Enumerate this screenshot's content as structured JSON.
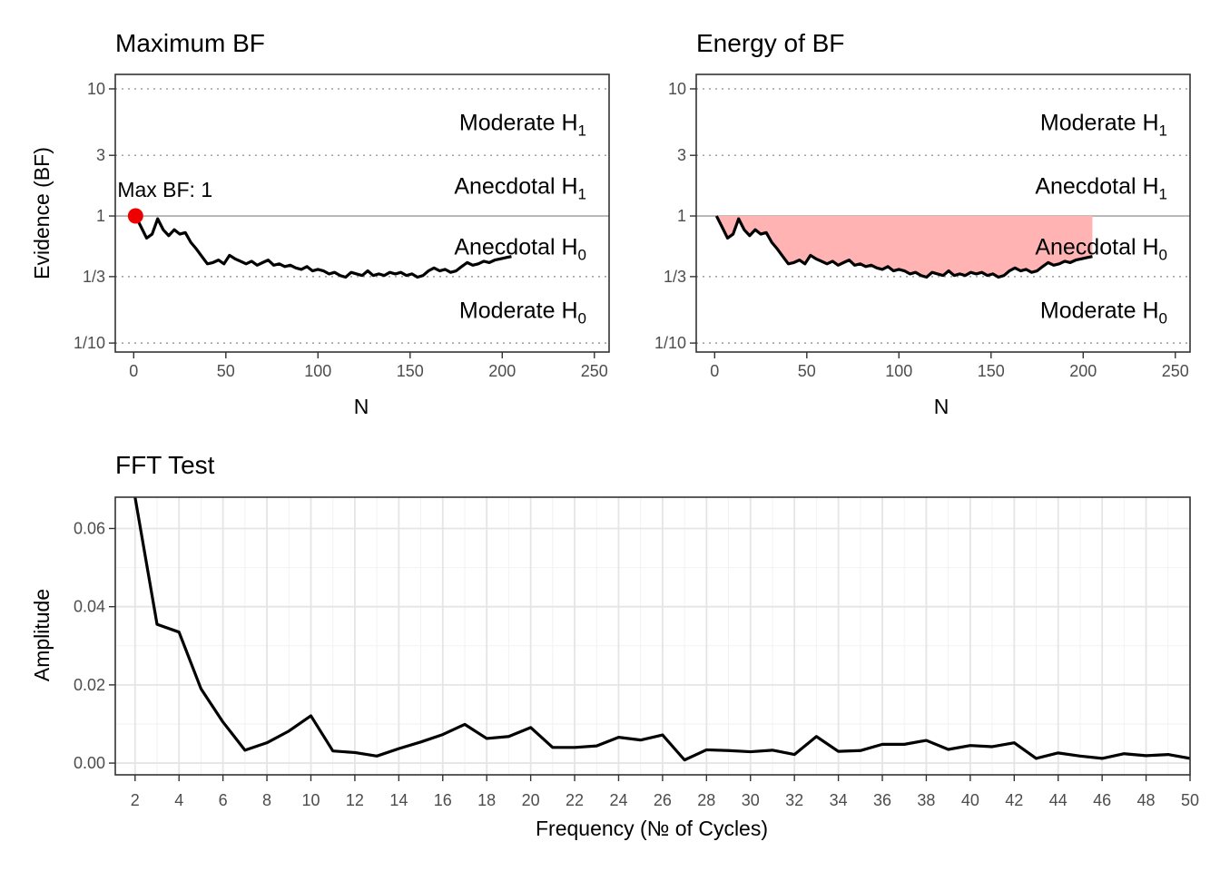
{
  "colors": {
    "max_point": "#ee0000",
    "energy_fill": "#ffb3b3",
    "line": "#000000"
  },
  "chart_data": [
    {
      "type": "line",
      "title": "Maximum BF",
      "xlabel": "N",
      "ylabel": "Evidence (BF)",
      "xlim": [
        -10,
        258
      ],
      "x_ticks": [
        0,
        50,
        100,
        150,
        200,
        250
      ],
      "y_scale": "log",
      "ylim": [
        0.085,
        13
      ],
      "y_ticks": [
        10,
        3,
        1,
        0.3333,
        0.1
      ],
      "y_tick_labels": [
        "10",
        "3",
        "1",
        "1/3",
        "1/10"
      ],
      "reference_lines": [
        {
          "y": 10,
          "style": "dotted"
        },
        {
          "y": 3,
          "style": "dotted"
        },
        {
          "y": 1,
          "style": "solid"
        },
        {
          "y": 0.3333,
          "style": "dotted"
        },
        {
          "y": 0.1,
          "style": "dotted"
        }
      ],
      "zones": [
        {
          "main": "Moderate H",
          "sub": "1",
          "y": 5.48
        },
        {
          "main": "Anecdotal H",
          "sub": "1",
          "y": 1.73
        },
        {
          "main": "Anecdotal H",
          "sub": "0",
          "y": 0.577
        },
        {
          "main": "Moderate H",
          "sub": "0",
          "y": 0.1826
        }
      ],
      "annotation": {
        "label": "Max BF: 1",
        "x": 1,
        "y": 1
      },
      "series": [
        {
          "x": [
            1,
            4,
            7,
            10,
            13,
            16,
            19,
            22,
            25,
            28,
            31,
            34,
            37,
            40,
            43,
            46,
            49,
            52,
            55,
            58,
            61,
            64,
            67,
            70,
            73,
            76,
            79,
            82,
            85,
            88,
            91,
            94,
            97,
            100,
            103,
            106,
            109,
            112,
            115,
            118,
            121,
            124,
            127,
            130,
            133,
            136,
            139,
            142,
            145,
            148,
            151,
            154,
            157,
            160,
            163,
            166,
            169,
            172,
            175,
            178,
            181,
            184,
            187,
            190,
            193,
            196,
            199,
            202,
            205
          ],
          "y": [
            1.0,
            0.82,
            0.67,
            0.72,
            0.95,
            0.78,
            0.7,
            0.78,
            0.72,
            0.74,
            0.62,
            0.55,
            0.48,
            0.42,
            0.43,
            0.45,
            0.42,
            0.49,
            0.46,
            0.44,
            0.42,
            0.44,
            0.41,
            0.43,
            0.45,
            0.41,
            0.42,
            0.4,
            0.41,
            0.39,
            0.38,
            0.4,
            0.37,
            0.38,
            0.37,
            0.35,
            0.36,
            0.34,
            0.33,
            0.36,
            0.35,
            0.34,
            0.37,
            0.34,
            0.35,
            0.34,
            0.36,
            0.35,
            0.36,
            0.34,
            0.35,
            0.33,
            0.34,
            0.37,
            0.39,
            0.37,
            0.38,
            0.36,
            0.37,
            0.4,
            0.43,
            0.41,
            0.42,
            0.44,
            0.43,
            0.45,
            0.46,
            0.47,
            0.48
          ]
        }
      ]
    },
    {
      "type": "area",
      "title": "Energy of BF",
      "xlabel": "N",
      "ylabel": "",
      "xlim": [
        -10,
        258
      ],
      "x_ticks": [
        0,
        50,
        100,
        150,
        200,
        250
      ],
      "y_scale": "log",
      "ylim": [
        0.085,
        13
      ],
      "y_ticks": [
        10,
        3,
        1,
        0.3333,
        0.1
      ],
      "y_tick_labels": [
        "10",
        "3",
        "1",
        "1/3",
        "1/10"
      ],
      "fill_between": [
        1,
        "series"
      ],
      "zones": [
        {
          "main": "Moderate H",
          "sub": "1",
          "y": 5.48
        },
        {
          "main": "Anecdotal H",
          "sub": "1",
          "y": 1.73
        },
        {
          "main": "Anecdotal H",
          "sub": "0",
          "y": 0.577
        },
        {
          "main": "Moderate H",
          "sub": "0",
          "y": 0.1826
        }
      ],
      "series_ref": "same as Maximum BF"
    },
    {
      "type": "line",
      "title": "FFT Test",
      "xlabel": "Frequency (№ of Cycles)",
      "ylabel": "Amplitude",
      "xlim": [
        1.1,
        50
      ],
      "x_ticks": [
        2,
        4,
        6,
        8,
        10,
        12,
        14,
        16,
        18,
        20,
        22,
        24,
        26,
        28,
        30,
        32,
        34,
        36,
        38,
        40,
        42,
        44,
        46,
        48,
        50
      ],
      "ylim": [
        -0.003,
        0.068
      ],
      "y_ticks": [
        0.0,
        0.02,
        0.04,
        0.06
      ],
      "y_tick_labels": [
        "0.00",
        "0.02",
        "0.04",
        "0.06"
      ],
      "grid": true,
      "series": [
        {
          "x": [
            2,
            3,
            4,
            5,
            6,
            7,
            8,
            9,
            10,
            11,
            12,
            13,
            14,
            15,
            16,
            17,
            18,
            19,
            20,
            21,
            22,
            23,
            24,
            25,
            26,
            27,
            28,
            29,
            30,
            31,
            32,
            33,
            34,
            35,
            36,
            37,
            38,
            39,
            40,
            41,
            42,
            43,
            44,
            45,
            46,
            47,
            48,
            49,
            50
          ],
          "y": [
            0.068,
            0.0355,
            0.0335,
            0.019,
            0.0105,
            0.0033,
            0.0052,
            0.0082,
            0.0121,
            0.0031,
            0.0027,
            0.0018,
            0.0037,
            0.0054,
            0.0073,
            0.0099,
            0.0063,
            0.0068,
            0.0091,
            0.004,
            0.004,
            0.0044,
            0.0066,
            0.0059,
            0.0072,
            0.0008,
            0.0034,
            0.0032,
            0.0029,
            0.0033,
            0.0022,
            0.0068,
            0.003,
            0.0032,
            0.0048,
            0.0048,
            0.0058,
            0.0035,
            0.0045,
            0.0042,
            0.0052,
            0.0012,
            0.0026,
            0.0018,
            0.0012,
            0.0024,
            0.0019,
            0.0022,
            0.0012
          ]
        }
      ]
    }
  ]
}
